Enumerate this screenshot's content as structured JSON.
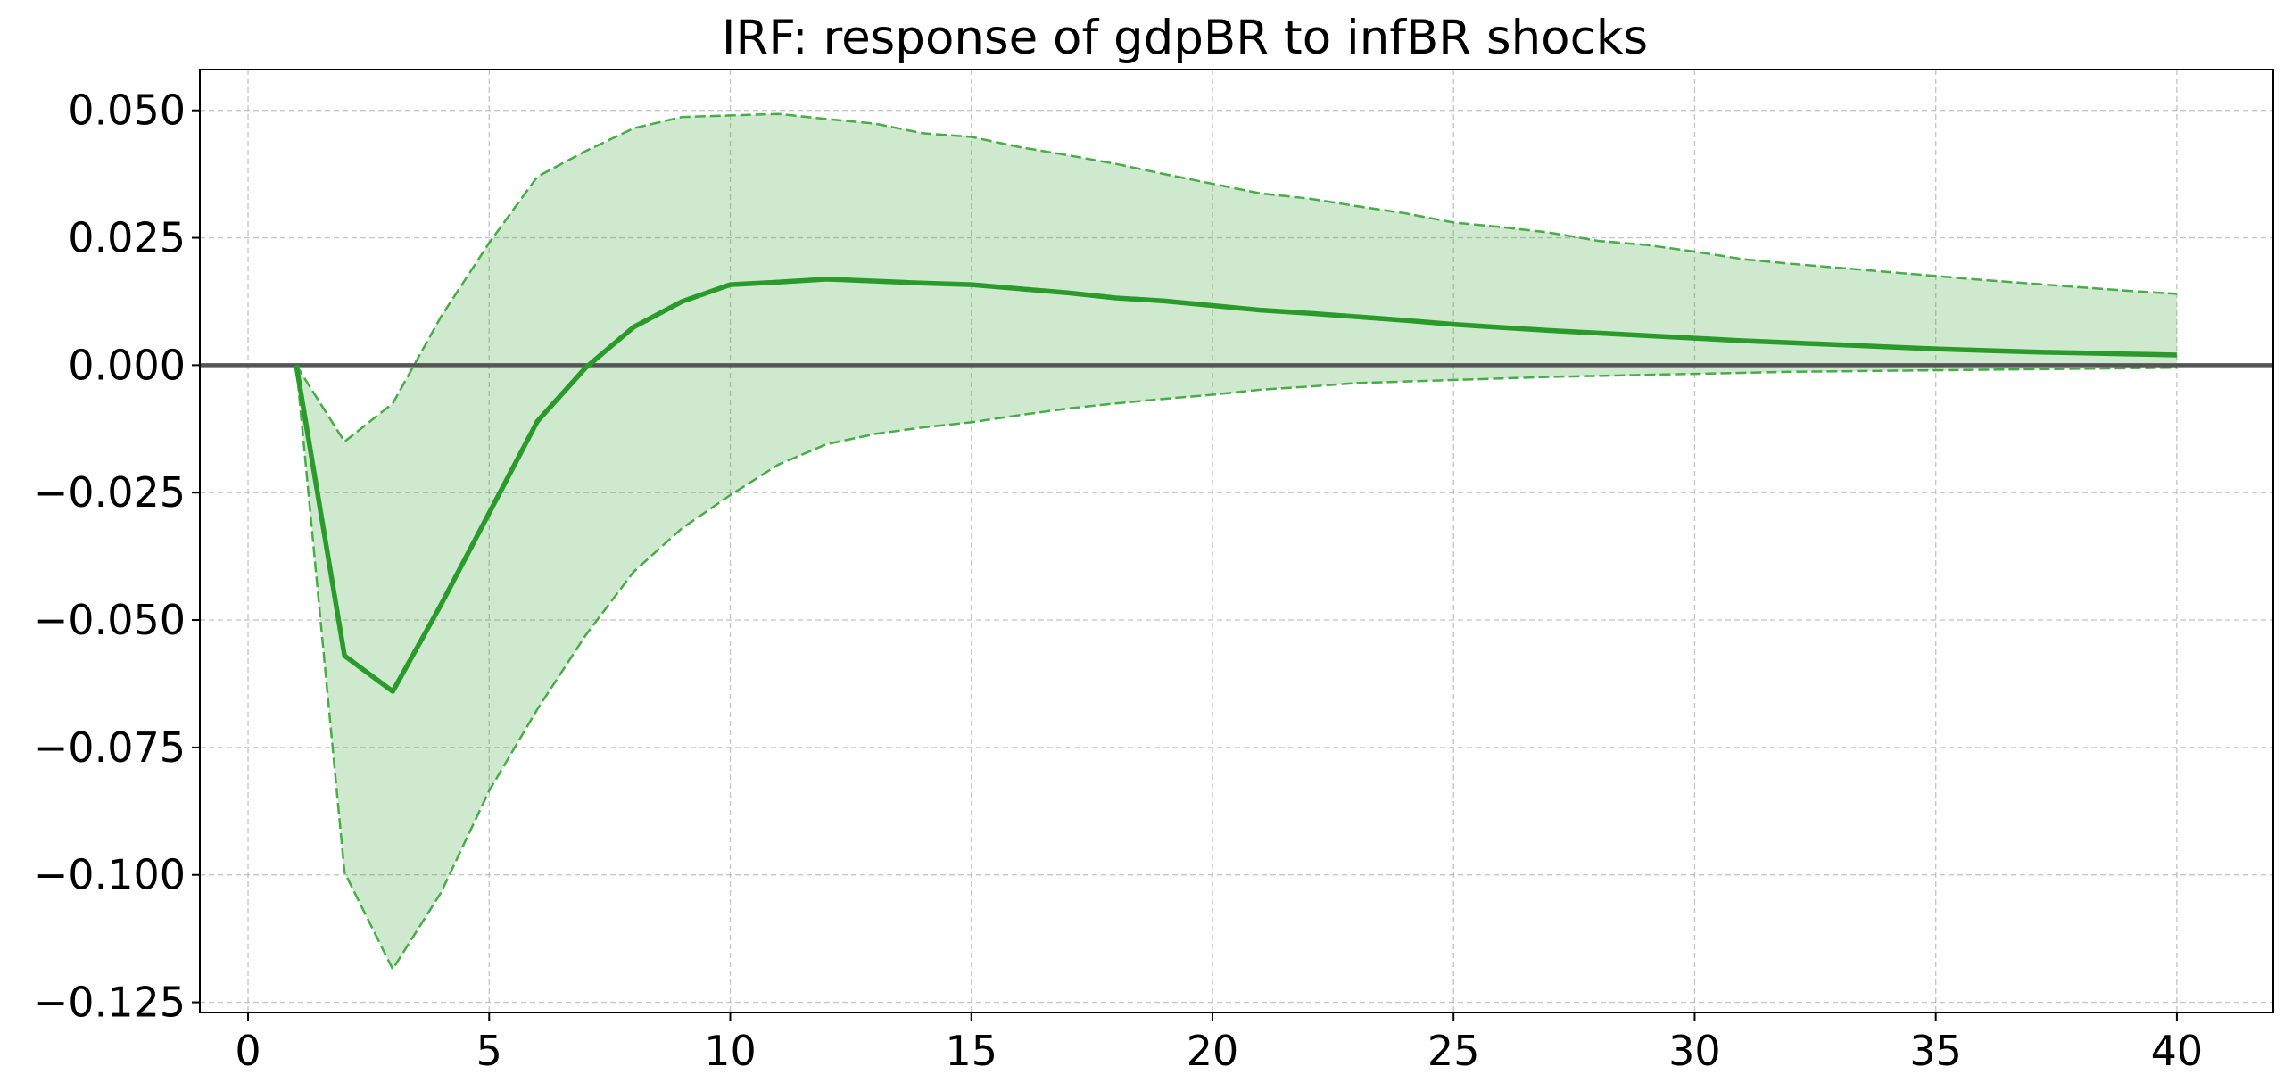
{
  "chart_data": {
    "type": "line",
    "title": "IRF: response of gdpBR to infBR shocks",
    "xlabel": "",
    "ylabel": "",
    "xlim": [
      -1,
      42
    ],
    "ylim": [
      -0.127,
      0.058
    ],
    "x_ticks": [
      0,
      5,
      10,
      15,
      20,
      25,
      30,
      35,
      40
    ],
    "x_tick_labels": [
      "0",
      "5",
      "10",
      "15",
      "20",
      "25",
      "30",
      "35",
      "40"
    ],
    "y_ticks": [
      0.05,
      0.025,
      0,
      -0.025,
      -0.05,
      -0.075,
      -0.1,
      -0.125
    ],
    "y_tick_labels": [
      "0.050",
      "0.025",
      "0.000",
      "−0.025",
      "−0.050",
      "−0.075",
      "−0.100",
      "−0.125"
    ],
    "grid": true,
    "legend": "none",
    "reference_line_y": 0,
    "x": [
      1,
      2,
      3,
      4,
      5,
      6,
      7,
      8,
      9,
      10,
      11,
      12,
      13,
      14,
      15,
      16,
      17,
      18,
      19,
      20,
      21,
      22,
      23,
      24,
      25,
      26,
      27,
      28,
      29,
      30,
      31,
      32,
      33,
      34,
      35,
      36,
      37,
      38,
      39,
      40
    ],
    "series": [
      {
        "role": "response",
        "values": [
          0.0,
          -0.057,
          -0.064,
          -0.047,
          -0.029,
          -0.011,
          -0.0005,
          0.0075,
          0.0125,
          0.0158,
          0.0163,
          0.0169,
          0.0165,
          0.0161,
          0.0158,
          0.015,
          0.0142,
          0.0132,
          0.0126,
          0.0117,
          0.0108,
          0.0102,
          0.0095,
          0.0088,
          0.008,
          0.0074,
          0.0068,
          0.0063,
          0.0058,
          0.0053,
          0.0048,
          0.0044,
          0.004,
          0.0036,
          0.0032,
          0.0029,
          0.0026,
          0.0024,
          0.0022,
          0.002
        ],
        "color": "#2a9a2a"
      },
      {
        "role": "upper_bound",
        "values": [
          0.0,
          -0.015,
          -0.0075,
          0.0095,
          0.024,
          0.037,
          0.042,
          0.0465,
          0.0487,
          0.049,
          0.0493,
          0.0483,
          0.0474,
          0.0455,
          0.0448,
          0.0428,
          0.0412,
          0.0395,
          0.0375,
          0.0356,
          0.0337,
          0.0327,
          0.0312,
          0.0298,
          0.028,
          0.0271,
          0.026,
          0.0244,
          0.0236,
          0.0223,
          0.0208,
          0.0199,
          0.0191,
          0.0183,
          0.0175,
          0.0167,
          0.016,
          0.0153,
          0.0146,
          0.014
        ],
        "color": "#2ca02c"
      },
      {
        "role": "lower_bound",
        "values": [
          0.0,
          -0.0995,
          -0.1185,
          -0.1035,
          -0.0835,
          -0.0675,
          -0.053,
          -0.0405,
          -0.032,
          -0.0255,
          -0.0195,
          -0.0155,
          -0.0135,
          -0.0122,
          -0.0112,
          -0.0098,
          -0.0085,
          -0.0075,
          -0.0066,
          -0.0058,
          -0.0048,
          -0.0042,
          -0.0035,
          -0.0032,
          -0.0029,
          -0.0026,
          -0.0023,
          -0.0021,
          -0.0019,
          -0.0017,
          -0.0015,
          -0.0013,
          -0.0012,
          -0.0011,
          -0.001,
          -0.0009,
          -0.0008,
          -0.0007,
          -0.0006,
          -0.0005
        ],
        "color": "#2ca02c"
      }
    ]
  }
}
